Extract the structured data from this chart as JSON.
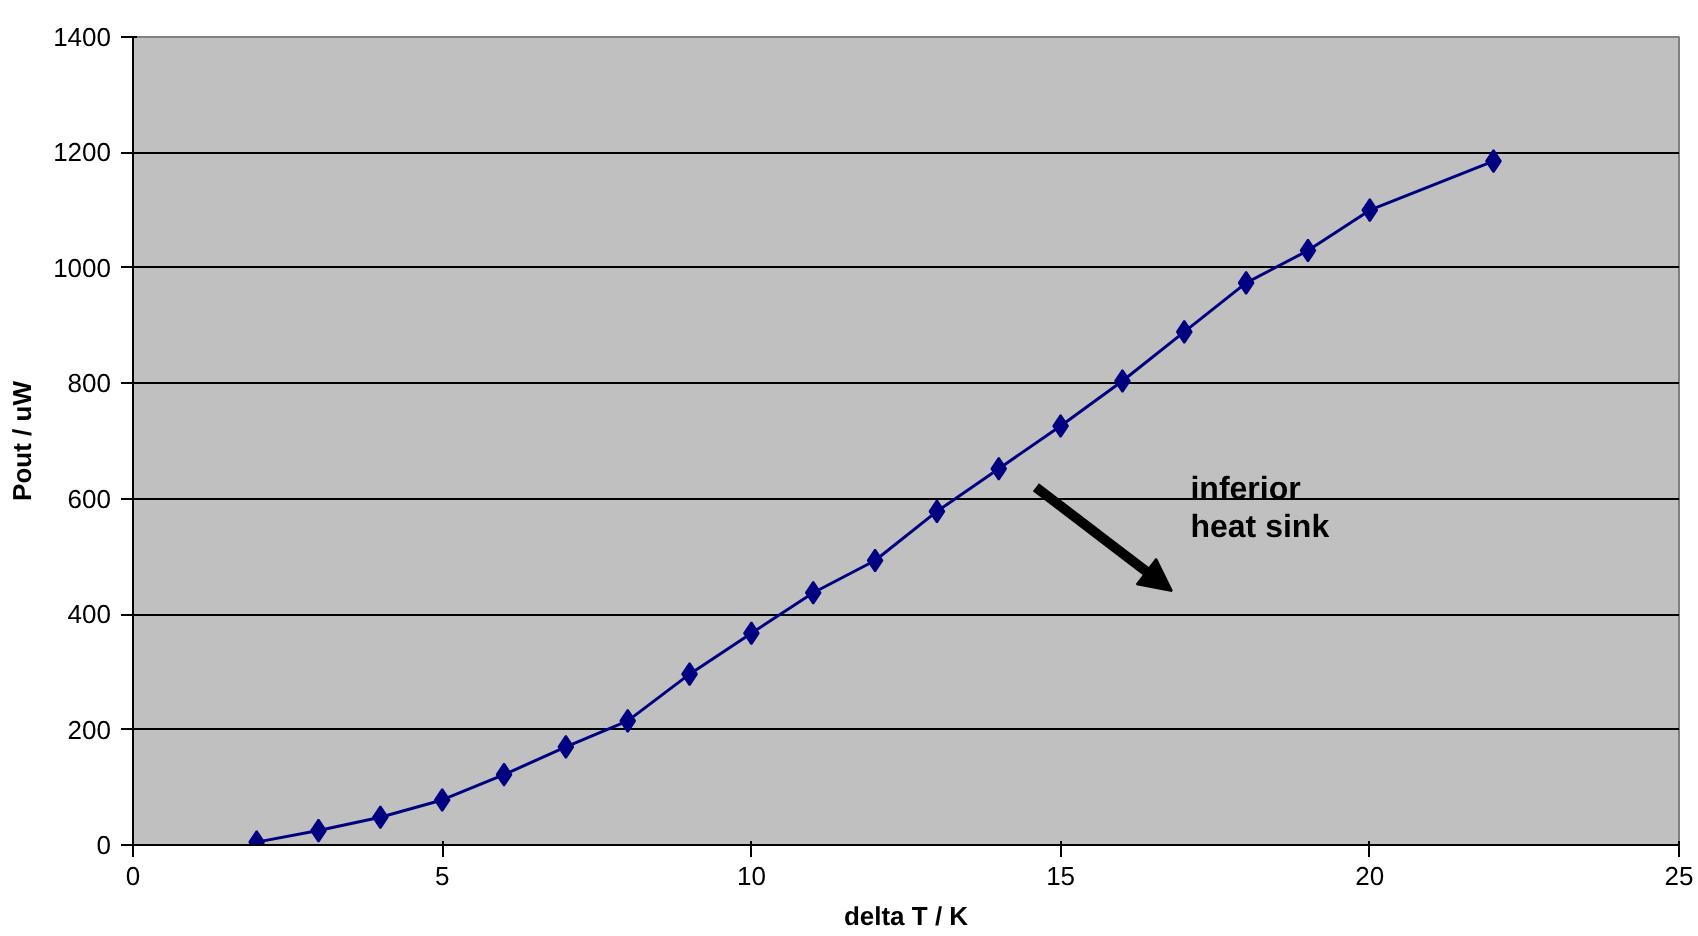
{
  "chart_data": {
    "type": "line",
    "xlabel": "delta T / K",
    "ylabel": "Pout / uW",
    "x": [
      2,
      3,
      4,
      5,
      6,
      7,
      8,
      9,
      10,
      11,
      12,
      13,
      14,
      15,
      16,
      17,
      18,
      19,
      20,
      22
    ],
    "series": [
      {
        "color": "#000080",
        "values": [
          5,
          25,
          48,
          78,
          122,
          170,
          215,
          296,
          367,
          437,
          493,
          578,
          652,
          726,
          804,
          889,
          974,
          1030,
          1100,
          1185
        ]
      }
    ],
    "xlim": [
      0,
      25
    ],
    "xticks": [
      0,
      5,
      10,
      15,
      20,
      25
    ],
    "ylim": [
      0,
      1400
    ],
    "yticks": [
      0,
      200,
      400,
      600,
      800,
      1000,
      1200,
      1400
    ],
    "grid": "y",
    "marker": "diamond",
    "line_style": "solid",
    "annotations": [
      "inferior\nheat sink"
    ]
  }
}
